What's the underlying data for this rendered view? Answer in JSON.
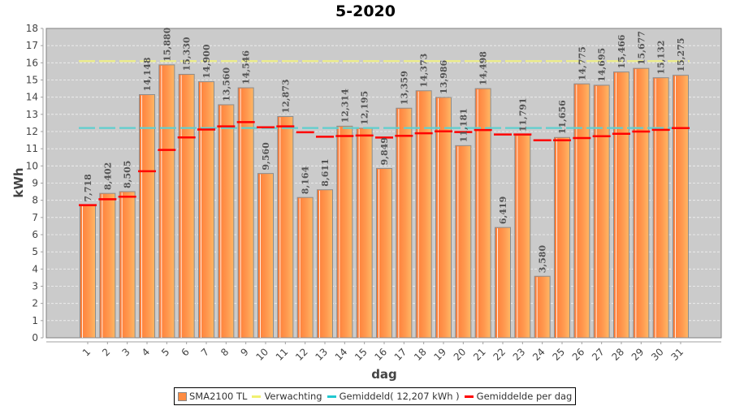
{
  "chart_data": {
    "type": "bar",
    "title": "5-2020",
    "xlabel": "dag",
    "ylabel": "kWh",
    "ylim": [
      0,
      18
    ],
    "yticks": [
      0,
      1,
      2,
      3,
      4,
      5,
      6,
      7,
      8,
      9,
      10,
      11,
      12,
      13,
      14,
      15,
      16,
      17,
      18
    ],
    "grid": true,
    "legend_position": "bottom-center",
    "categories": [
      "1",
      "2",
      "3",
      "4",
      "5",
      "6",
      "7",
      "8",
      "9",
      "10",
      "11",
      "12",
      "13",
      "14",
      "15",
      "16",
      "17",
      "18",
      "19",
      "20",
      "21",
      "22",
      "23",
      "24",
      "25",
      "26",
      "27",
      "28",
      "29",
      "30",
      "31"
    ],
    "series": [
      {
        "name": "SMA2100 TL",
        "kind": "bar",
        "color": "#ff8c42",
        "values": [
          7.718,
          8.402,
          8.505,
          14.148,
          15.88,
          15.33,
          14.9,
          13.56,
          14.546,
          9.56,
          12.873,
          8.164,
          8.611,
          12.314,
          12.195,
          9.849,
          13.359,
          14.373,
          13.986,
          11.181,
          14.498,
          6.419,
          11.791,
          3.58,
          11.656,
          14.775,
          14.695,
          15.466,
          15.677,
          15.132,
          15.275
        ],
        "labels": [
          "7,718",
          "8,402",
          "8,505",
          "14,148",
          "15,880",
          "15,330",
          "14,900",
          "13,560",
          "14,546",
          "9,560",
          "12,873",
          "8,164",
          "8,611",
          "12,314",
          "12,195",
          "9,849",
          "13,359",
          "14,373",
          "13,986",
          "11,181",
          "14,498",
          "6,419",
          "11,791",
          "3,580",
          "11,656",
          "14,775",
          "14,695",
          "15,466",
          "15,677",
          "15,132",
          "15,275"
        ]
      },
      {
        "name": "Verwachting",
        "kind": "hline-dashed",
        "color": "#f0f080",
        "value": 16.1
      },
      {
        "name": "Gemiddeld( 12,207 kWh )",
        "kind": "hline-dashed",
        "color": "#5fcfcf",
        "value": 12.207
      },
      {
        "name": "Gemiddelde per dag",
        "kind": "markers",
        "color": "#ff0000",
        "values": [
          7.72,
          8.06,
          8.21,
          9.69,
          10.93,
          11.66,
          12.12,
          12.3,
          12.55,
          12.25,
          12.3,
          11.96,
          11.7,
          11.74,
          11.77,
          11.65,
          11.75,
          11.9,
          12.01,
          11.97,
          12.09,
          11.83,
          11.83,
          11.49,
          11.49,
          11.62,
          11.73,
          11.87,
          12.0,
          12.1,
          12.2
        ]
      }
    ]
  }
}
